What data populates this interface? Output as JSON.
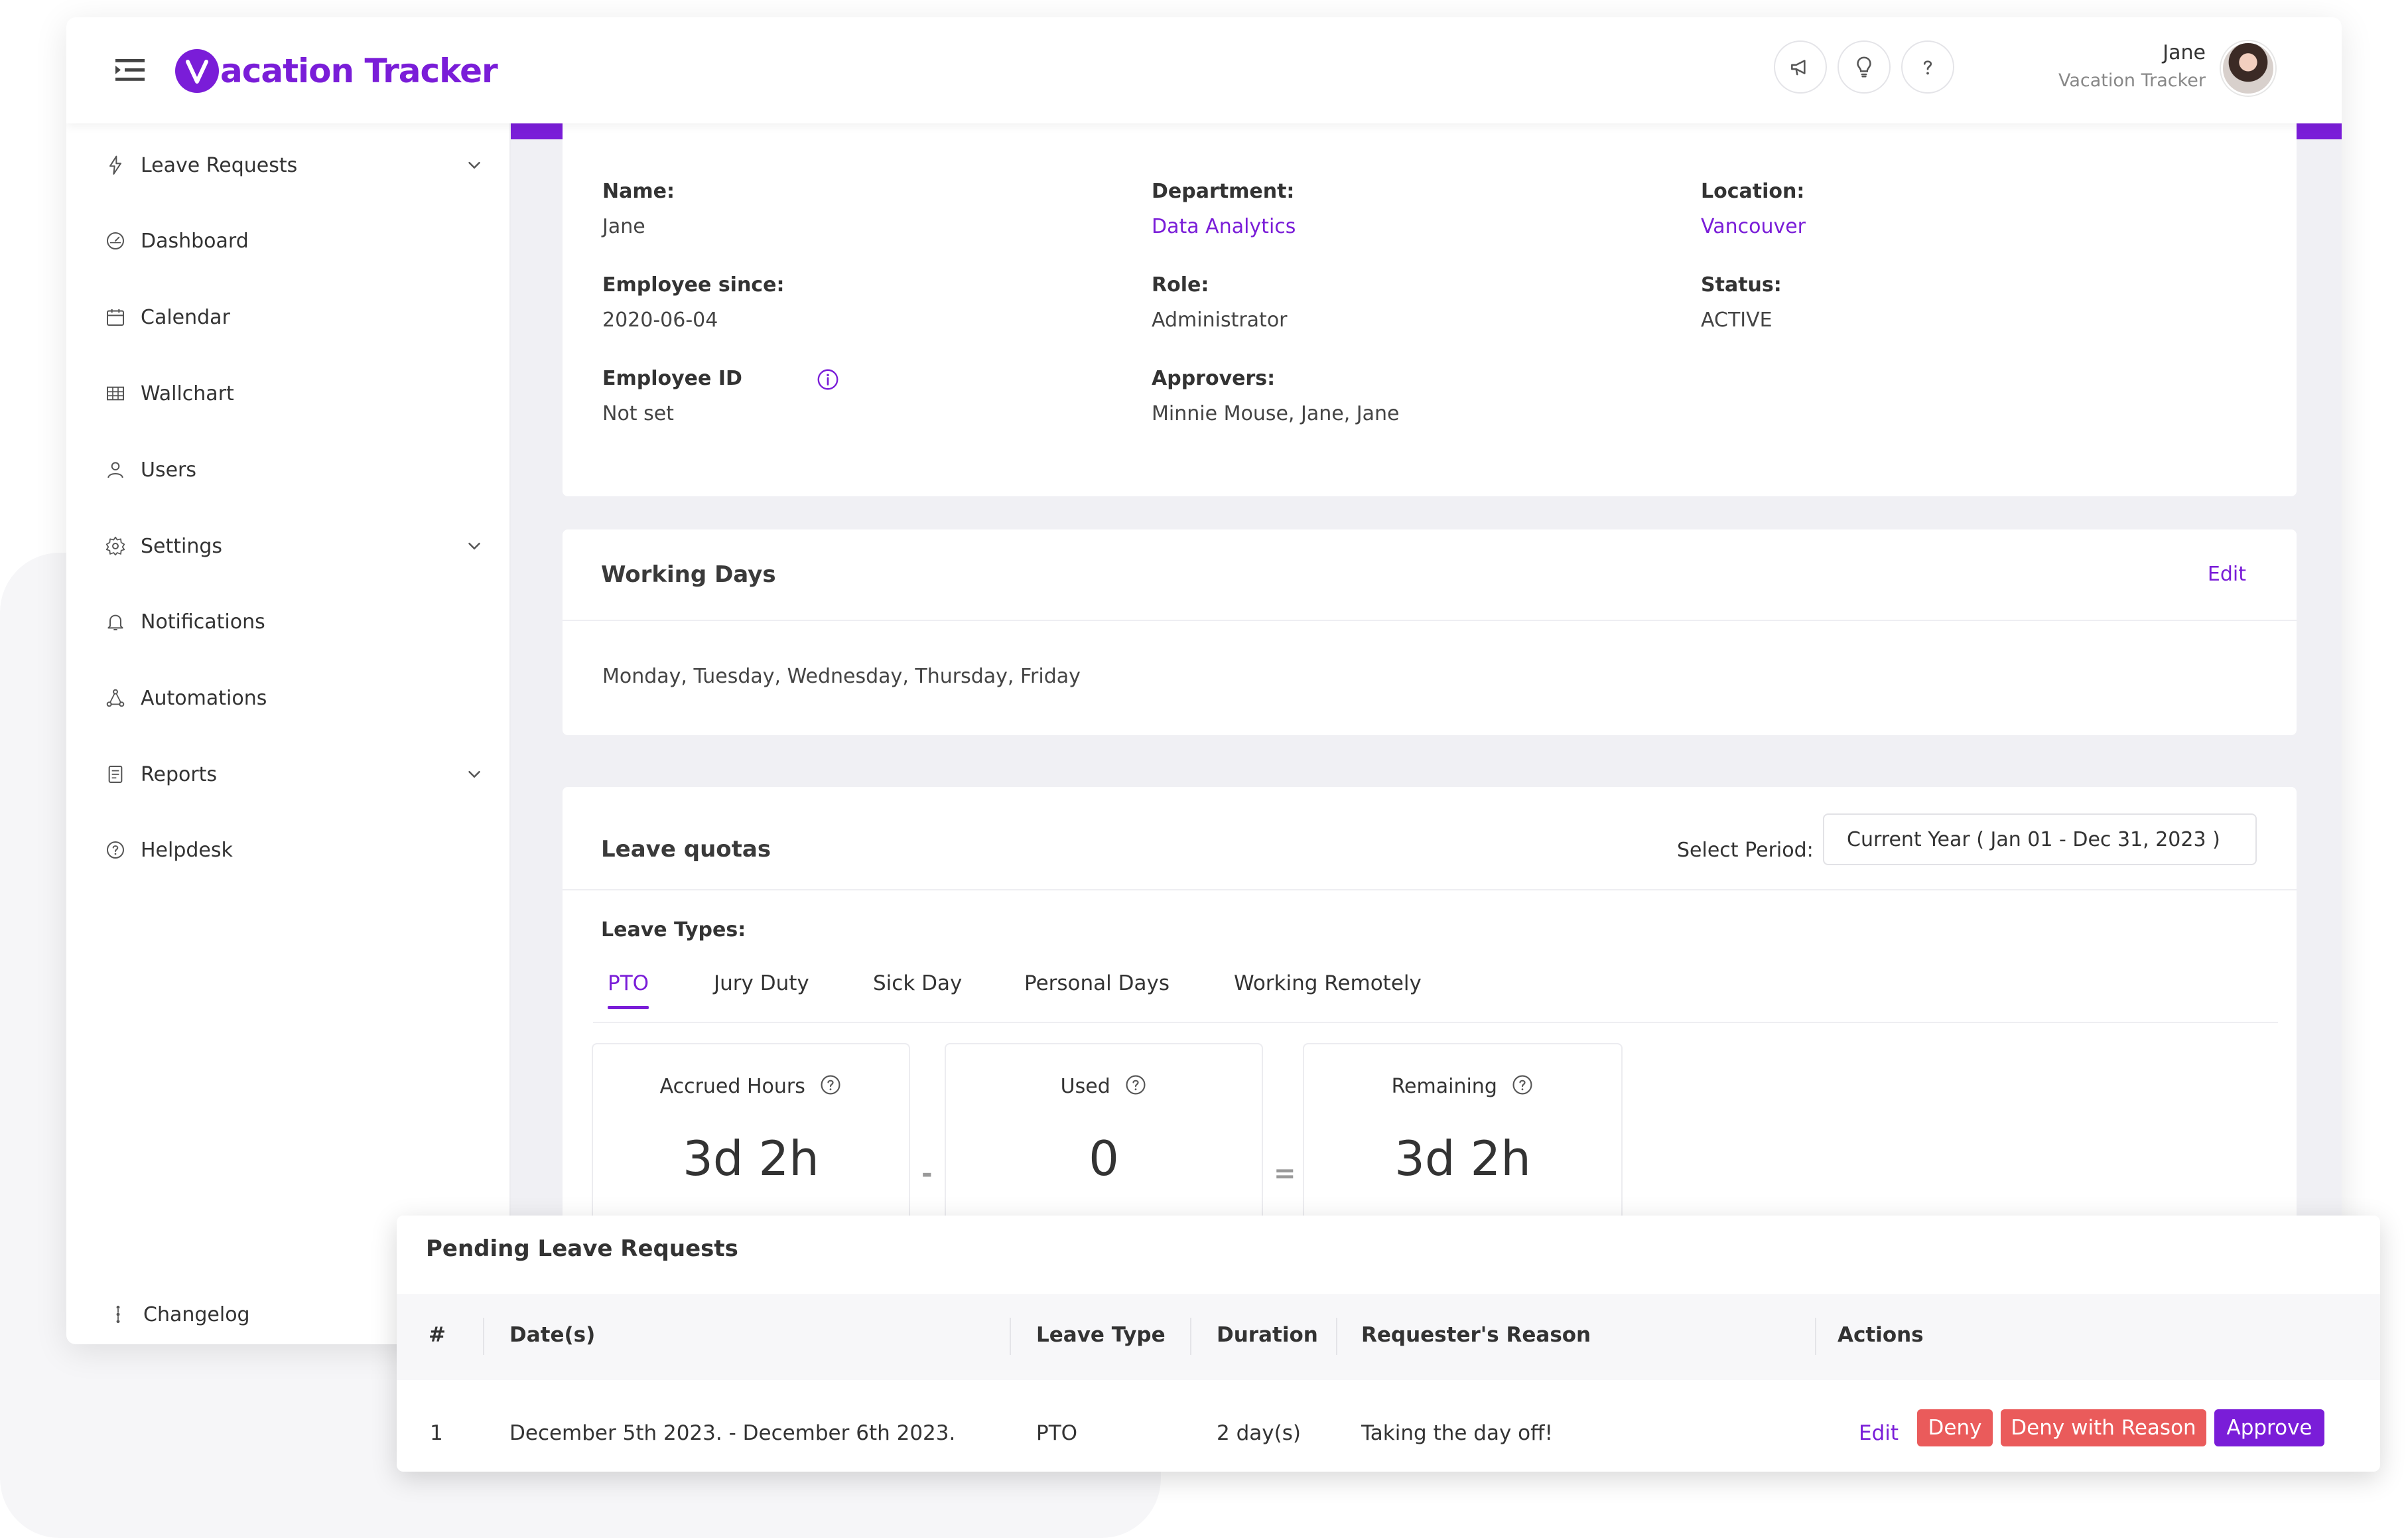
{
  "header": {
    "app_name": "acation Tracker",
    "logo_letter": "V",
    "user_name": "Jane",
    "user_org": "Vacation Tracker",
    "buttons": [
      "megaphone-icon",
      "lightbulb-icon",
      "help-icon"
    ]
  },
  "sidebar": {
    "items": [
      {
        "label": "Leave Requests",
        "icon": "lightning-icon",
        "expandable": true
      },
      {
        "label": "Dashboard",
        "icon": "gauge-icon",
        "expandable": false
      },
      {
        "label": "Calendar",
        "icon": "calendar-icon",
        "expandable": false
      },
      {
        "label": "Wallchart",
        "icon": "grid-icon",
        "expandable": false
      },
      {
        "label": "Users",
        "icon": "user-icon",
        "expandable": false
      },
      {
        "label": "Settings",
        "icon": "gear-icon",
        "expandable": true
      },
      {
        "label": "Notifications",
        "icon": "bell-icon",
        "expandable": false
      },
      {
        "label": "Automations",
        "icon": "nodes-icon",
        "expandable": false
      },
      {
        "label": "Reports",
        "icon": "report-icon",
        "expandable": true
      },
      {
        "label": "Helpdesk",
        "icon": "help-icon",
        "expandable": false
      }
    ],
    "changelog": "Changelog"
  },
  "profile": {
    "name_label": "Name:",
    "name_value": "Jane",
    "department_label": "Department:",
    "department_value": "Data Analytics",
    "location_label": "Location:",
    "location_value": "Vancouver",
    "since_label": "Employee since:",
    "since_value": "2020-06-04",
    "role_label": "Role:",
    "role_value": "Administrator",
    "status_label": "Status:",
    "status_value": "ACTIVE",
    "empid_label": "Employee ID",
    "empid_value": "Not set",
    "approvers_label": "Approvers:",
    "approvers_value": "Minnie Mouse, Jane, Jane"
  },
  "working_days": {
    "title": "Working Days",
    "edit_label": "Edit",
    "value": "Monday, Tuesday, Wednesday, Thursday, Friday"
  },
  "leave_quotas": {
    "title": "Leave quotas",
    "period_label": "Select Period:",
    "period_value": "Current Year ( Jan 01 - Dec 31, 2023 )",
    "types_label": "Leave Types:",
    "tabs": [
      "PTO",
      "Jury Duty",
      "Sick Day",
      "Personal Days",
      "Working Remotely"
    ],
    "active_tab": "PTO",
    "accrued_label": "Accrued Hours",
    "accrued_value": "3d 2h",
    "used_label": "Used",
    "used_value": "0",
    "remaining_label": "Remaining",
    "remaining_value": "3d 2h",
    "minus": "-",
    "equals": "="
  },
  "pending": {
    "title": "Pending Leave Requests",
    "columns": [
      "#",
      "Date(s)",
      "Leave Type",
      "Duration",
      "Requester's Reason",
      "Actions"
    ],
    "rows": [
      {
        "num": "1",
        "dates": "December 5th 2023. - December 6th 2023.",
        "leave_type": "PTO",
        "duration": "2 day(s)",
        "reason": "Taking the day off!",
        "edit": "Edit",
        "deny": "Deny",
        "deny_reason": "Deny with Reason",
        "approve": "Approve"
      }
    ]
  },
  "colors": {
    "brand": "#7a1dd8",
    "deny": "#ea5b5b",
    "background": "#f0f0f4"
  }
}
